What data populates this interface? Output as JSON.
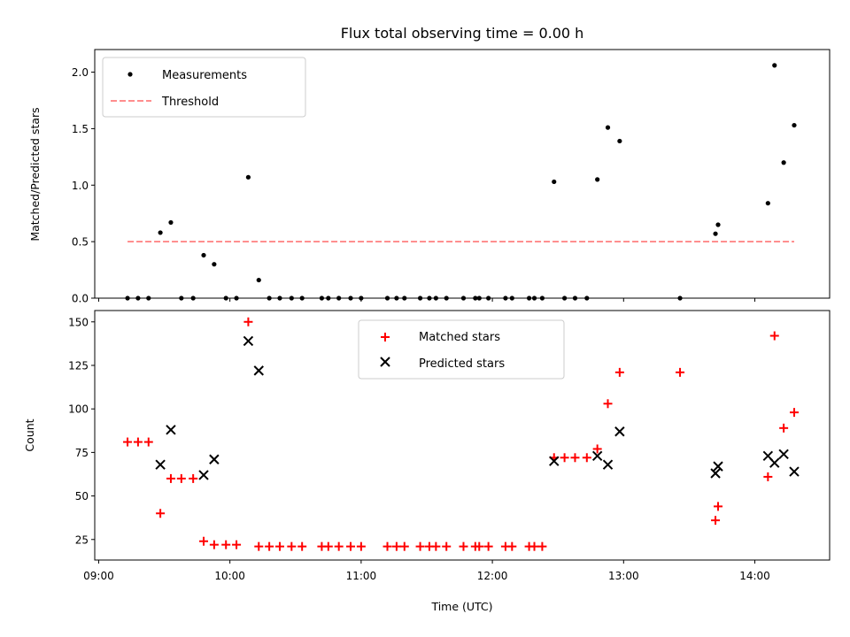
{
  "chart_data": {
    "title": "Flux total observing time = 0.00 h",
    "xlabel": "Time (UTC)",
    "x_ticks": [
      "09:00",
      "10:00",
      "11:00",
      "12:00",
      "13:00",
      "14:00"
    ],
    "x_tick_hours": [
      9,
      10,
      11,
      12,
      13,
      14
    ],
    "xlim_hours": [
      8.97,
      14.57
    ],
    "panels": [
      {
        "type": "scatter",
        "ylabel": "Matched/Predicted stars",
        "ylim": [
          0,
          2.2
        ],
        "y_ticks": [
          "0.0",
          "0.5",
          "1.0",
          "1.5",
          "2.0"
        ],
        "y_tick_values": [
          0,
          0.5,
          1.0,
          1.5,
          2.0
        ],
        "legend": {
          "placement": "upper left",
          "items": [
            "Measurements",
            "Threshold"
          ]
        },
        "colors": {
          "Measurements": "#000000",
          "Threshold": "#ff7f7f"
        },
        "series": [
          {
            "name": "Measurements",
            "marker": "dot",
            "points": [
              [
                9.22,
                0
              ],
              [
                9.3,
                0
              ],
              [
                9.38,
                0
              ],
              [
                9.47,
                0.58
              ],
              [
                9.55,
                0.67
              ],
              [
                9.63,
                0
              ],
              [
                9.72,
                0
              ],
              [
                9.8,
                0.38
              ],
              [
                9.88,
                0.3
              ],
              [
                9.97,
                0
              ],
              [
                10.05,
                0
              ],
              [
                10.14,
                1.07
              ],
              [
                10.22,
                0.16
              ],
              [
                10.3,
                0
              ],
              [
                10.38,
                0
              ],
              [
                10.47,
                0
              ],
              [
                10.55,
                0
              ],
              [
                10.7,
                0
              ],
              [
                10.75,
                0
              ],
              [
                10.83,
                0
              ],
              [
                10.92,
                0
              ],
              [
                11.0,
                0
              ],
              [
                11.2,
                0
              ],
              [
                11.27,
                0
              ],
              [
                11.33,
                0
              ],
              [
                11.45,
                0
              ],
              [
                11.52,
                0
              ],
              [
                11.57,
                0
              ],
              [
                11.65,
                0
              ],
              [
                11.78,
                0
              ],
              [
                11.87,
                0
              ],
              [
                11.9,
                0
              ],
              [
                11.97,
                0
              ],
              [
                12.1,
                0
              ],
              [
                12.15,
                0
              ],
              [
                12.28,
                0
              ],
              [
                12.32,
                0
              ],
              [
                12.38,
                0
              ],
              [
                12.47,
                1.03
              ],
              [
                12.55,
                0
              ],
              [
                12.63,
                0
              ],
              [
                12.72,
                0
              ],
              [
                12.8,
                1.05
              ],
              [
                12.88,
                1.51
              ],
              [
                12.97,
                1.39
              ],
              [
                13.43,
                0
              ],
              [
                13.7,
                0.57
              ],
              [
                13.72,
                0.65
              ],
              [
                14.1,
                0.84
              ],
              [
                14.15,
                2.06
              ],
              [
                14.22,
                1.2
              ],
              [
                14.3,
                1.53
              ]
            ]
          },
          {
            "name": "Threshold",
            "style": "dashed",
            "points": [
              [
                9.22,
                0.5
              ],
              [
                14.3,
                0.5
              ]
            ]
          }
        ]
      },
      {
        "type": "scatter",
        "ylabel": "Count",
        "ylim": [
          13.2,
          156.5
        ],
        "y_ticks": [
          "25",
          "50",
          "75",
          "100",
          "125",
          "150"
        ],
        "y_tick_values": [
          25,
          50,
          75,
          100,
          125,
          150
        ],
        "legend": {
          "placement": "upper center",
          "items": [
            "Matched stars",
            "Predicted stars"
          ]
        },
        "colors": {
          "Matched stars": "#ff0000",
          "Predicted stars": "#000000"
        },
        "series": [
          {
            "name": "Matched stars",
            "marker": "plus",
            "points": [
              [
                9.22,
                81
              ],
              [
                9.3,
                81
              ],
              [
                9.38,
                81
              ],
              [
                9.47,
                40
              ],
              [
                9.55,
                60
              ],
              [
                9.63,
                60
              ],
              [
                9.72,
                60
              ],
              [
                9.8,
                24
              ],
              [
                9.88,
                22
              ],
              [
                9.97,
                22
              ],
              [
                10.05,
                22
              ],
              [
                10.14,
                150
              ],
              [
                10.22,
                21
              ],
              [
                10.3,
                21
              ],
              [
                10.38,
                21
              ],
              [
                10.47,
                21
              ],
              [
                10.55,
                21
              ],
              [
                10.7,
                21
              ],
              [
                10.75,
                21
              ],
              [
                10.83,
                21
              ],
              [
                10.92,
                21
              ],
              [
                11.0,
                21
              ],
              [
                11.2,
                21
              ],
              [
                11.27,
                21
              ],
              [
                11.33,
                21
              ],
              [
                11.45,
                21
              ],
              [
                11.52,
                21
              ],
              [
                11.57,
                21
              ],
              [
                11.65,
                21
              ],
              [
                11.78,
                21
              ],
              [
                11.87,
                21
              ],
              [
                11.9,
                21
              ],
              [
                11.97,
                21
              ],
              [
                12.1,
                21
              ],
              [
                12.15,
                21
              ],
              [
                12.28,
                21
              ],
              [
                12.32,
                21
              ],
              [
                12.38,
                21
              ],
              [
                12.47,
                72
              ],
              [
                12.55,
                72
              ],
              [
                12.63,
                72
              ],
              [
                12.72,
                72
              ],
              [
                12.8,
                77
              ],
              [
                12.88,
                103
              ],
              [
                12.97,
                121
              ],
              [
                13.43,
                121
              ],
              [
                13.7,
                36
              ],
              [
                13.72,
                44
              ],
              [
                14.1,
                61
              ],
              [
                14.15,
                142
              ],
              [
                14.22,
                89
              ],
              [
                14.3,
                98
              ]
            ]
          },
          {
            "name": "Predicted stars",
            "marker": "x",
            "points": [
              [
                9.47,
                68
              ],
              [
                9.55,
                88
              ],
              [
                9.8,
                62
              ],
              [
                9.88,
                71
              ],
              [
                10.14,
                139
              ],
              [
                10.22,
                122
              ],
              [
                12.47,
                70
              ],
              [
                12.8,
                73
              ],
              [
                12.88,
                68
              ],
              [
                12.97,
                87
              ],
              [
                13.7,
                63
              ],
              [
                13.72,
                67
              ],
              [
                14.1,
                73
              ],
              [
                14.15,
                69
              ],
              [
                14.22,
                74
              ],
              [
                14.3,
                64
              ]
            ]
          }
        ]
      }
    ]
  }
}
